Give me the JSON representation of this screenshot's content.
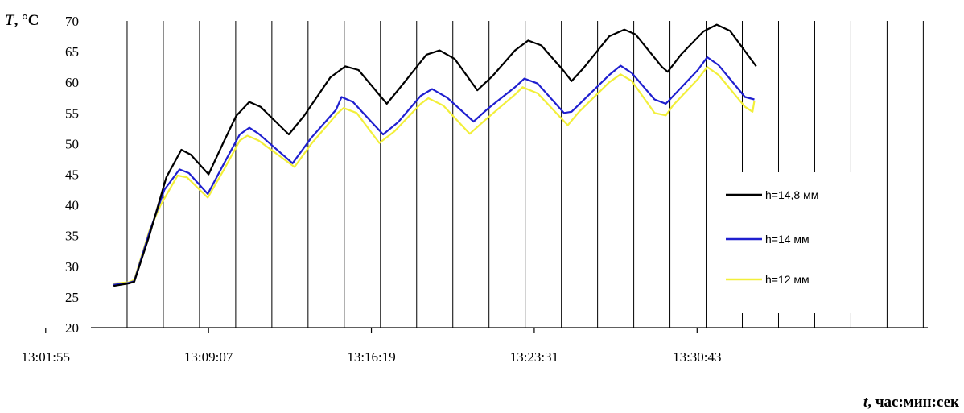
{
  "chart_data": {
    "type": "line",
    "title": "",
    "ylabel_symbol": "T",
    "ylabel_unit": ", °C",
    "xlabel_symbol": "t",
    "xlabel_unit": ", час:мин:сек",
    "ylim": [
      20,
      70
    ],
    "yticks": [
      20,
      25,
      30,
      35,
      40,
      45,
      50,
      55,
      60,
      65,
      70
    ],
    "ytick_labels": [
      "20",
      "25",
      "30",
      "35",
      "40",
      "45",
      "50",
      "55",
      "60",
      "65",
      "70"
    ],
    "xlim_seconds_of_day": [
      47035,
      49255
    ],
    "xticks": [
      "13:01:55",
      "13:09:07",
      "13:16:19",
      "13:23:31",
      "13:30:43"
    ],
    "grid": "vertical",
    "legend_position": "right",
    "series": [
      {
        "name": "h=14,8 мм",
        "color": "#000000",
        "points": [
          [
            "13:04:55",
            26.8
          ],
          [
            "13:05:35",
            27.2
          ],
          [
            "13:05:50",
            27.5
          ],
          [
            "13:06:30",
            35.0
          ],
          [
            "13:07:15",
            44.5
          ],
          [
            "13:07:55",
            49.0
          ],
          [
            "13:08:20",
            48.2
          ],
          [
            "13:09:07",
            45.0
          ],
          [
            "13:09:45",
            50.0
          ],
          [
            "13:10:20",
            54.5
          ],
          [
            "13:10:55",
            56.8
          ],
          [
            "13:11:25",
            56.0
          ],
          [
            "13:12:40",
            51.5
          ],
          [
            "13:13:20",
            54.5
          ],
          [
            "13:14:30",
            60.8
          ],
          [
            "13:15:10",
            62.6
          ],
          [
            "13:15:45",
            62.0
          ],
          [
            "13:17:00",
            56.5
          ],
          [
            "13:17:40",
            59.5
          ],
          [
            "13:18:45",
            64.5
          ],
          [
            "13:19:20",
            65.2
          ],
          [
            "13:20:00",
            63.8
          ],
          [
            "13:21:00",
            58.7
          ],
          [
            "13:21:40",
            61.0
          ],
          [
            "13:22:40",
            65.2
          ],
          [
            "13:23:15",
            66.8
          ],
          [
            "13:23:50",
            66.0
          ],
          [
            "13:24:50",
            61.8
          ],
          [
            "13:25:10",
            60.2
          ],
          [
            "13:25:40",
            62.2
          ],
          [
            "13:26:50",
            67.5
          ],
          [
            "13:27:30",
            68.6
          ],
          [
            "13:28:00",
            67.8
          ],
          [
            "13:29:10",
            62.5
          ],
          [
            "13:29:25",
            61.7
          ],
          [
            "13:30:00",
            64.5
          ],
          [
            "13:31:00",
            68.3
          ],
          [
            "13:31:35",
            69.4
          ],
          [
            "13:32:10",
            68.4
          ],
          [
            "13:33:20",
            62.6
          ]
        ]
      },
      {
        "name": "h=14 мм",
        "color": "#1f1fcf",
        "points": [
          [
            "13:04:55",
            27.0
          ],
          [
            "13:05:35",
            27.3
          ],
          [
            "13:05:50",
            27.6
          ],
          [
            "13:06:30",
            35.5
          ],
          [
            "13:07:10",
            42.5
          ],
          [
            "13:07:50",
            45.8
          ],
          [
            "13:08:15",
            45.2
          ],
          [
            "13:09:05",
            41.8
          ],
          [
            "13:09:50",
            47.0
          ],
          [
            "13:10:30",
            51.5
          ],
          [
            "13:10:55",
            52.6
          ],
          [
            "13:11:20",
            51.6
          ],
          [
            "13:12:50",
            46.8
          ],
          [
            "13:13:40",
            51.0
          ],
          [
            "13:14:45",
            55.5
          ],
          [
            "13:15:00",
            57.6
          ],
          [
            "13:15:30",
            56.8
          ],
          [
            "13:16:50",
            51.5
          ],
          [
            "13:17:30",
            53.5
          ],
          [
            "13:18:30",
            57.8
          ],
          [
            "13:19:00",
            58.9
          ],
          [
            "13:19:40",
            57.5
          ],
          [
            "13:20:50",
            53.6
          ],
          [
            "13:21:30",
            55.8
          ],
          [
            "13:22:40",
            59.2
          ],
          [
            "13:23:05",
            60.6
          ],
          [
            "13:23:40",
            59.8
          ],
          [
            "13:24:50",
            55.0
          ],
          [
            "13:25:10",
            55.2
          ],
          [
            "13:25:40",
            57.0
          ],
          [
            "13:26:50",
            61.2
          ],
          [
            "13:27:20",
            62.7
          ],
          [
            "13:27:50",
            61.5
          ],
          [
            "13:28:50",
            57.2
          ],
          [
            "13:29:20",
            56.5
          ],
          [
            "13:29:40",
            57.8
          ],
          [
            "13:30:45",
            62.0
          ],
          [
            "13:31:10",
            64.1
          ],
          [
            "13:31:40",
            62.8
          ],
          [
            "13:32:50",
            57.6
          ],
          [
            "13:33:15",
            57.2
          ]
        ]
      },
      {
        "name": "h=12 мм",
        "color": "#f2ef3a",
        "points": [
          [
            "13:04:55",
            27.2
          ],
          [
            "13:05:35",
            27.4
          ],
          [
            "13:05:50",
            27.8
          ],
          [
            "13:06:30",
            35.8
          ],
          [
            "13:07:00",
            40.0
          ],
          [
            "13:07:45",
            44.8
          ],
          [
            "13:08:10",
            44.5
          ],
          [
            "13:09:05",
            41.2
          ],
          [
            "13:09:50",
            46.0
          ],
          [
            "13:10:30",
            50.5
          ],
          [
            "13:10:50",
            51.3
          ],
          [
            "13:11:20",
            50.5
          ],
          [
            "13:12:55",
            46.2
          ],
          [
            "13:13:40",
            50.0
          ],
          [
            "13:14:50",
            55.0
          ],
          [
            "13:15:05",
            55.8
          ],
          [
            "13:15:40",
            55.0
          ],
          [
            "13:16:40",
            50.1
          ],
          [
            "13:17:20",
            52.0
          ],
          [
            "13:18:30",
            56.5
          ],
          [
            "13:18:50",
            57.4
          ],
          [
            "13:19:30",
            56.2
          ],
          [
            "13:20:40",
            51.6
          ],
          [
            "13:21:20",
            53.8
          ],
          [
            "13:22:40",
            58.0
          ],
          [
            "13:23:00",
            59.2
          ],
          [
            "13:23:40",
            58.2
          ],
          [
            "13:25:00",
            53.0
          ],
          [
            "13:25:30",
            55.2
          ],
          [
            "13:26:50",
            60.0
          ],
          [
            "13:27:20",
            61.3
          ],
          [
            "13:27:50",
            60.2
          ],
          [
            "13:28:50",
            55.0
          ],
          [
            "13:29:20",
            54.6
          ],
          [
            "13:29:40",
            56.3
          ],
          [
            "13:30:45",
            60.5
          ],
          [
            "13:31:10",
            62.5
          ],
          [
            "13:31:40",
            61.2
          ],
          [
            "13:32:50",
            56.0
          ],
          [
            "13:33:10",
            55.2
          ],
          [
            "13:33:15",
            57.0
          ]
        ]
      }
    ]
  }
}
